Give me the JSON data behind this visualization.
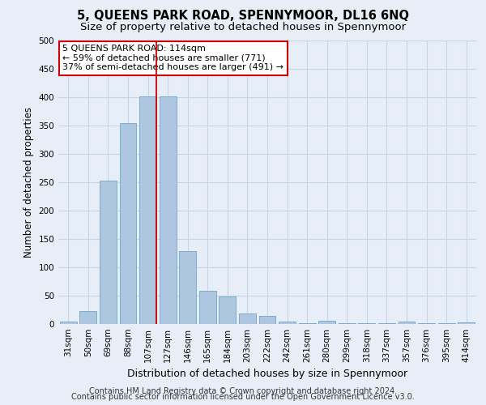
{
  "title": "5, QUEENS PARK ROAD, SPENNYMOOR, DL16 6NQ",
  "subtitle": "Size of property relative to detached houses in Spennymoor",
  "xlabel": "Distribution of detached houses by size in Spennymoor",
  "ylabel": "Number of detached properties",
  "categories": [
    "31sqm",
    "50sqm",
    "69sqm",
    "88sqm",
    "107sqm",
    "127sqm",
    "146sqm",
    "165sqm",
    "184sqm",
    "203sqm",
    "222sqm",
    "242sqm",
    "261sqm",
    "280sqm",
    "299sqm",
    "318sqm",
    "337sqm",
    "357sqm",
    "376sqm",
    "395sqm",
    "414sqm"
  ],
  "values": [
    5,
    23,
    253,
    355,
    402,
    402,
    128,
    59,
    48,
    19,
    15,
    4,
    1,
    6,
    2,
    1,
    1,
    5,
    1,
    1,
    3
  ],
  "bar_color": "#aec6df",
  "bar_edge_color": "#7aaecb",
  "property_bar_index": 4,
  "vline_color": "#cc0000",
  "annotation_line1": "5 QUEENS PARK ROAD: 114sqm",
  "annotation_line2": "← 59% of detached houses are smaller (771)",
  "annotation_line3": "37% of semi-detached houses are larger (491) →",
  "annotation_box_color": "#ffffff",
  "annotation_box_edge": "#cc0000",
  "ylim": [
    0,
    500
  ],
  "yticks": [
    0,
    50,
    100,
    150,
    200,
    250,
    300,
    350,
    400,
    450,
    500
  ],
  "grid_color": "#c8d4e8",
  "background_color": "#e8eef8",
  "plot_bg_color": "#e8eef8",
  "footer_line1": "Contains HM Land Registry data © Crown copyright and database right 2024.",
  "footer_line2": "Contains public sector information licensed under the Open Government Licence v3.0.",
  "title_fontsize": 10.5,
  "subtitle_fontsize": 9.5,
  "xlabel_fontsize": 9,
  "ylabel_fontsize": 8.5,
  "tick_fontsize": 7.5,
  "annot_fontsize": 8,
  "footer_fontsize": 7
}
